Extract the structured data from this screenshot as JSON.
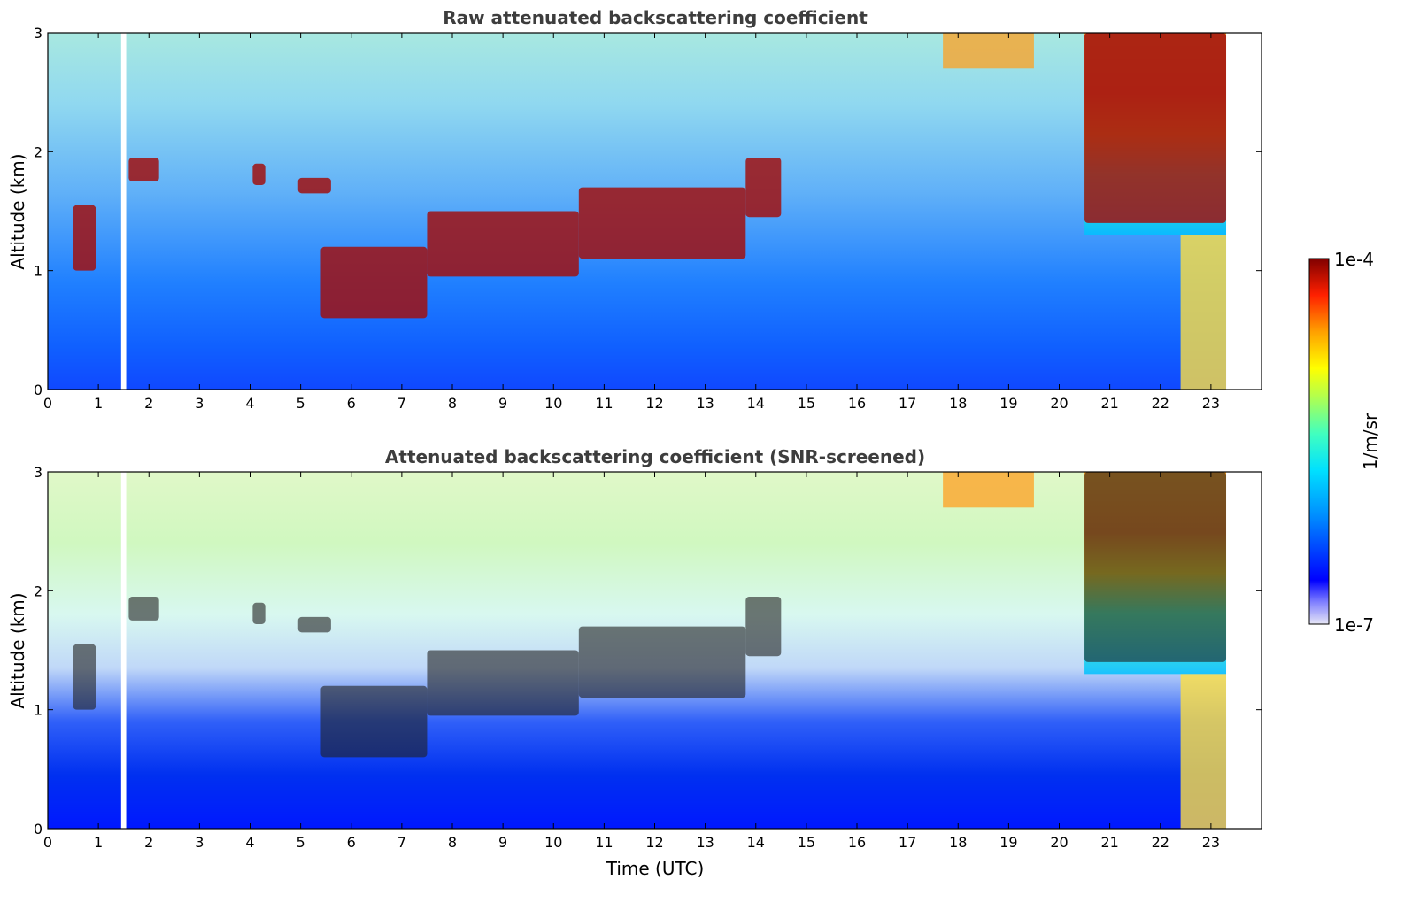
{
  "chart_data": [
    {
      "type": "heatmap",
      "title": "Raw attenuated backscattering coefficient",
      "xlabel": "",
      "ylabel": "Altitude (km)",
      "xlim": [
        0,
        24
      ],
      "ylim": [
        0,
        3
      ],
      "x_ticks": [
        "0",
        "1",
        "2",
        "3",
        "4",
        "5",
        "6",
        "7",
        "8",
        "9",
        "10",
        "11",
        "12",
        "13",
        "14",
        "15",
        "16",
        "17",
        "18",
        "19",
        "20",
        "21",
        "22",
        "23"
      ],
      "y_ticks": [
        "0",
        "1",
        "2",
        "3"
      ],
      "data_end_hour": 23.3,
      "gap_hours": [
        1.45,
        1.55
      ],
      "cloud_layers": [
        {
          "time": [
            0.5,
            0.95
          ],
          "altitude": [
            1.0,
            1.55
          ]
        },
        {
          "time": [
            1.6,
            2.2
          ],
          "altitude": [
            1.75,
            1.95
          ]
        },
        {
          "time": [
            4.05,
            4.3
          ],
          "altitude": [
            1.72,
            1.9
          ]
        },
        {
          "time": [
            4.95,
            5.6
          ],
          "altitude": [
            1.65,
            1.78
          ]
        },
        {
          "time": [
            5.4,
            7.5
          ],
          "altitude": [
            0.6,
            1.2
          ]
        },
        {
          "time": [
            7.5,
            10.5
          ],
          "altitude": [
            0.95,
            1.5
          ]
        },
        {
          "time": [
            10.5,
            13.8
          ],
          "altitude": [
            1.1,
            1.7
          ]
        },
        {
          "time": [
            13.8,
            14.5
          ],
          "altitude": [
            1.45,
            1.95
          ]
        },
        {
          "time": [
            20.5,
            23.3
          ],
          "altitude": [
            1.4,
            3.0
          ]
        }
      ]
    },
    {
      "type": "heatmap",
      "title": "Attenuated backscattering coefficient (SNR-screened)",
      "xlabel": "Time (UTC)",
      "ylabel": "Altitude (km)",
      "xlim": [
        0,
        24
      ],
      "ylim": [
        0,
        3
      ],
      "x_ticks": [
        "0",
        "1",
        "2",
        "3",
        "4",
        "5",
        "6",
        "7",
        "8",
        "9",
        "10",
        "11",
        "12",
        "13",
        "14",
        "15",
        "16",
        "17",
        "18",
        "19",
        "20",
        "21",
        "22",
        "23"
      ],
      "y_ticks": [
        "0",
        "1",
        "2",
        "3"
      ],
      "data_end_hour": 23.3,
      "gap_hours": [
        1.45,
        1.55
      ]
    }
  ],
  "colorbar": {
    "label": "1/m/sr",
    "max_label": "1e-4",
    "min_label": "1e-7",
    "range": [
      1e-07,
      0.0001
    ],
    "scale": "log",
    "colormap": [
      "#e6e6f6",
      "#0000ff",
      "#00a0ff",
      "#00ffff",
      "#7fff7f",
      "#ffff00",
      "#ff8000",
      "#ff0000",
      "#800000"
    ]
  }
}
